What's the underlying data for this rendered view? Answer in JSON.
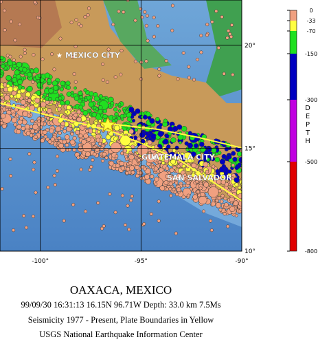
{
  "map": {
    "cities": [
      "MEXICO CITY",
      "GUATEMALA CITY",
      "SAN SALVADOR"
    ],
    "lon_ticks": [
      {
        "value": -100,
        "label": "-100°"
      },
      {
        "value": -95,
        "label": "-95°"
      },
      {
        "value": -90,
        "label": "-90°"
      }
    ],
    "lat_ticks": [
      {
        "value": 20,
        "label": "20°"
      },
      {
        "value": 15,
        "label": "15°"
      },
      {
        "value": 10,
        "label": "10°"
      }
    ],
    "lon_range": [
      -102,
      -90
    ],
    "lat_range": [
      10,
      22.2
    ]
  },
  "depth_scale": {
    "label": "DEPTH",
    "ticks": [
      0,
      -33,
      -70,
      -150,
      -300,
      -500,
      -800
    ],
    "colors": [
      "#f0a080",
      "#ffff40",
      "#20e020",
      "#0000c0",
      "#c000e0",
      "#e00000"
    ]
  },
  "caption": {
    "title": "OAXACA, MEXICO",
    "lines": [
      "99/09/30 16:31:13 16.15N 96.71W Depth: 33.0 km 7.5Ms",
      "Seismicity 1977 - Present, Plate Boundaries in Yellow",
      "USGS National Earthquake Information Center"
    ]
  }
}
